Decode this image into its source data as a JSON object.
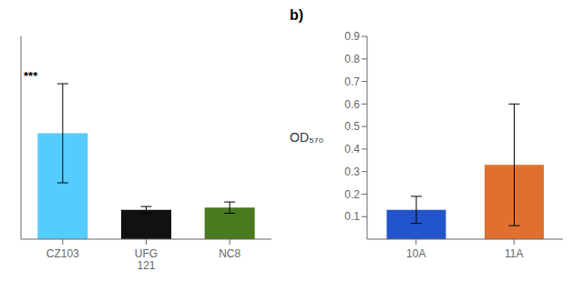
{
  "chart_data": [
    {
      "type": "bar",
      "categories": [
        "CZ103",
        "UFG\n121",
        "NC8"
      ],
      "values": [
        0.47,
        0.13,
        0.14
      ],
      "errors": [
        0.22,
        0.015,
        0.025
      ],
      "colors": [
        "#55ccff",
        "#111111",
        "#4a7a20"
      ],
      "ylim": [
        0,
        0.9
      ],
      "yticks": [
        0.1,
        0.2,
        0.3,
        0.4,
        0.5,
        0.6,
        0.7,
        0.8,
        0.9
      ],
      "tick_labels": "x",
      "annotations": [
        {
          "text": "***",
          "category": "CZ103"
        }
      ]
    },
    {
      "type": "bar",
      "title": "b)",
      "categories": [
        "10A",
        "11A"
      ],
      "values": [
        0.13,
        0.33
      ],
      "errors": [
        0.06,
        0.27
      ],
      "colors": [
        "#2255cc",
        "#e07030"
      ],
      "ylabel": "OD₅₇₀",
      "ylim": [
        0,
        0.9
      ],
      "yticks": [
        0.1,
        0.2,
        0.3,
        0.4,
        0.5,
        0.6,
        0.7,
        0.8,
        0.9
      ]
    }
  ]
}
